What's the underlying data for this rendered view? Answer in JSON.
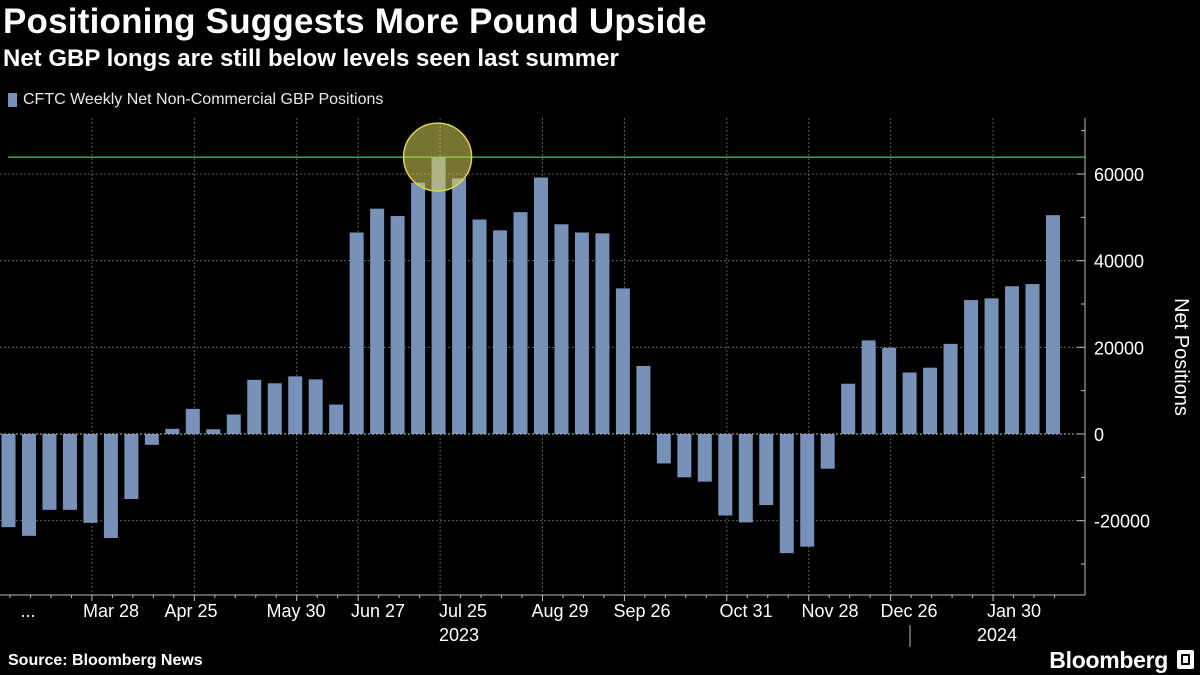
{
  "header": {
    "title": "Positioning Suggests More Pound Upside",
    "subtitle": "Net GBP longs are still below levels seen last summer"
  },
  "footer": {
    "source": "Source: Bloomberg News",
    "brand": "Bloomberg"
  },
  "colors": {
    "background": "#000000",
    "bar": "#7891b8",
    "reference_line": "#3fcf3f",
    "highlight_circle": "#d9d35a"
  },
  "chart_data": {
    "type": "bar",
    "legend": [
      "CFTC Weekly Net Non-Commercial GBP Positions"
    ],
    "legend_position": "top-left",
    "ylabel": "Net Positions",
    "ylim": [
      -30000,
      72000
    ],
    "y_ticks": [
      -20000,
      0,
      20000,
      40000,
      60000
    ],
    "y_tick_labels": [
      "-20000",
      "0",
      "20000",
      "40000",
      "60000"
    ],
    "grid": true,
    "x_tick_labels": [
      "...",
      "Mar 28",
      "Apr 25",
      "May 30",
      "Jun 27",
      "Jul 25",
      "Aug 29",
      "Sep 26",
      "Oct 31",
      "Nov 28",
      "Dec 26",
      "Jan 30"
    ],
    "year_labels": [
      "2023",
      "2024"
    ],
    "reference_line_value": 63900,
    "highlighted_value": 63900,
    "series": [
      {
        "values": [
          -21500,
          -23500,
          -17500,
          -17500,
          -20500,
          -24000,
          -15000,
          -2500,
          1200,
          5800,
          1100,
          4500,
          12500,
          11700,
          13300,
          12600,
          6800,
          46500,
          52000,
          50300,
          58000,
          63900,
          59000,
          49500,
          47000,
          51200,
          59200,
          48400,
          46500,
          46300,
          33600,
          15700,
          -6800,
          -10000,
          -11000,
          -18800,
          -20400,
          -16400,
          -27500,
          -26000,
          -8000,
          11600,
          21600,
          19900,
          14200,
          15300,
          20800,
          30900,
          31300,
          34100,
          34600,
          50500
        ]
      }
    ]
  }
}
